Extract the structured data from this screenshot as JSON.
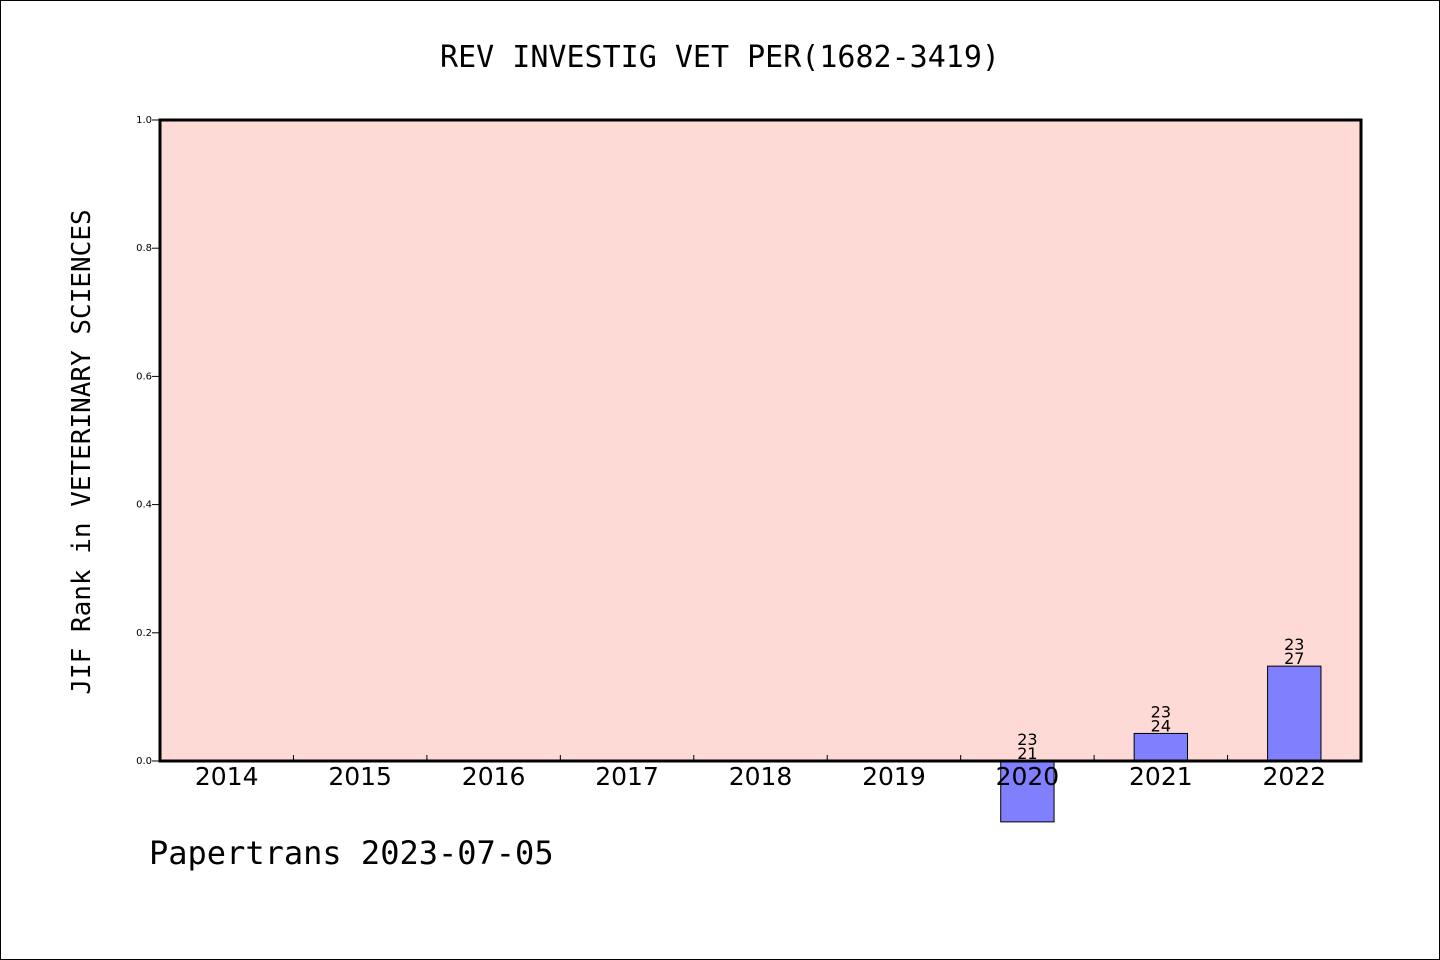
{
  "chart_data": {
    "type": "bar",
    "title": "REV INVESTIG VET PER(1682-3419)",
    "ylabel": "JIF Rank in VETERINARY SCIENCES",
    "xlabel": "",
    "ylim": [
      0.0,
      1.0
    ],
    "yticks": [
      "0.0",
      "0.2",
      "0.4",
      "0.6",
      "0.8",
      "1.0"
    ],
    "categories": [
      "2014",
      "2015",
      "2016",
      "2017",
      "2018",
      "2019",
      "2020",
      "2021",
      "2022"
    ],
    "values": [
      null,
      null,
      null,
      null,
      null,
      null,
      -0.095,
      0.043,
      0.148
    ],
    "bar_labels": [
      null,
      null,
      null,
      null,
      null,
      null,
      {
        "top": "23",
        "bottom": "21"
      },
      {
        "top": "23",
        "bottom": "24"
      },
      {
        "top": "23",
        "bottom": "27"
      }
    ],
    "grid": false,
    "colors": {
      "plot_background": "#fddad6",
      "bar_fill": "#8080ff",
      "bar_stroke": "#000000",
      "axis": "#000000"
    }
  },
  "footer": {
    "watermark": "Papertrans 2023-07-05"
  }
}
